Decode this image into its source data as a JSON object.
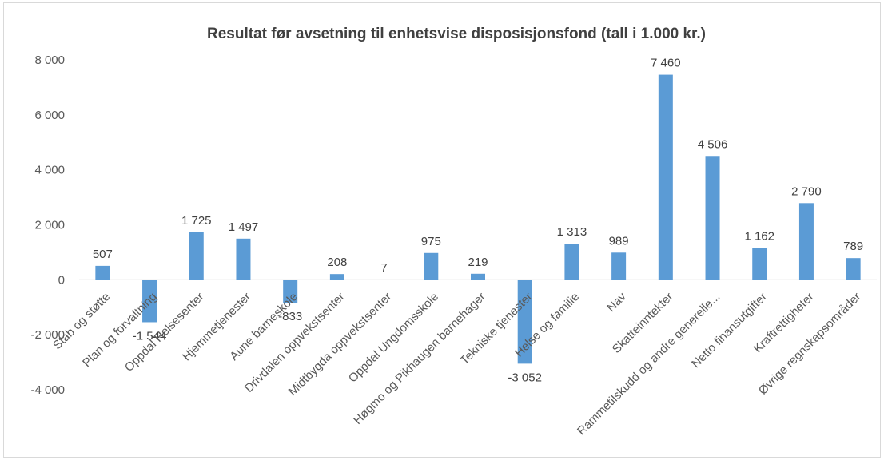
{
  "chart_data": {
    "type": "bar",
    "title": "Resultat før avsetning til enhetsvise disposisjonsfond (tall i 1.000 kr.)",
    "xlabel": "",
    "ylabel": "",
    "ylim": [
      -4000,
      8000
    ],
    "yticks": [
      -4000,
      -2000,
      0,
      2000,
      4000,
      6000,
      8000
    ],
    "ytick_labels": [
      "-4 000",
      "-2 000",
      "0",
      "2 000",
      "4 000",
      "6 000",
      "8 000"
    ],
    "grid": false,
    "legend": "none",
    "color": "#5b9bd5",
    "categories": [
      "Stab og støtte",
      "Plan og forvaltning",
      "Oppdal Helsesenter",
      "Hjemmetjenester",
      "Aune barneskole",
      "Drivdalen oppvekstsenter",
      "Midtbygda oppvekstsenter",
      "Oppdal Ungdomsskole",
      "Høgmo og Pikhaugen barnehager",
      "Tekniske tjenester",
      "Helse og familie",
      "Nav",
      "Skatteinntekter",
      "Rammetilskudd  og andre generelle...",
      "Netto finansutgifter",
      "Kraftrettigheter",
      "Øvrige regnskapsområder"
    ],
    "values": [
      507,
      -1544,
      1725,
      1497,
      -833,
      208,
      7,
      975,
      219,
      -3052,
      1313,
      989,
      7460,
      4506,
      1162,
      2790,
      789
    ],
    "value_labels": [
      "507",
      "-1 544",
      "1 725",
      "1 497",
      "-833",
      "208",
      "7",
      "975",
      "219",
      "-3 052",
      "1 313",
      "989",
      "7 460",
      "4 506",
      "1 162",
      "2 790",
      "789"
    ]
  }
}
